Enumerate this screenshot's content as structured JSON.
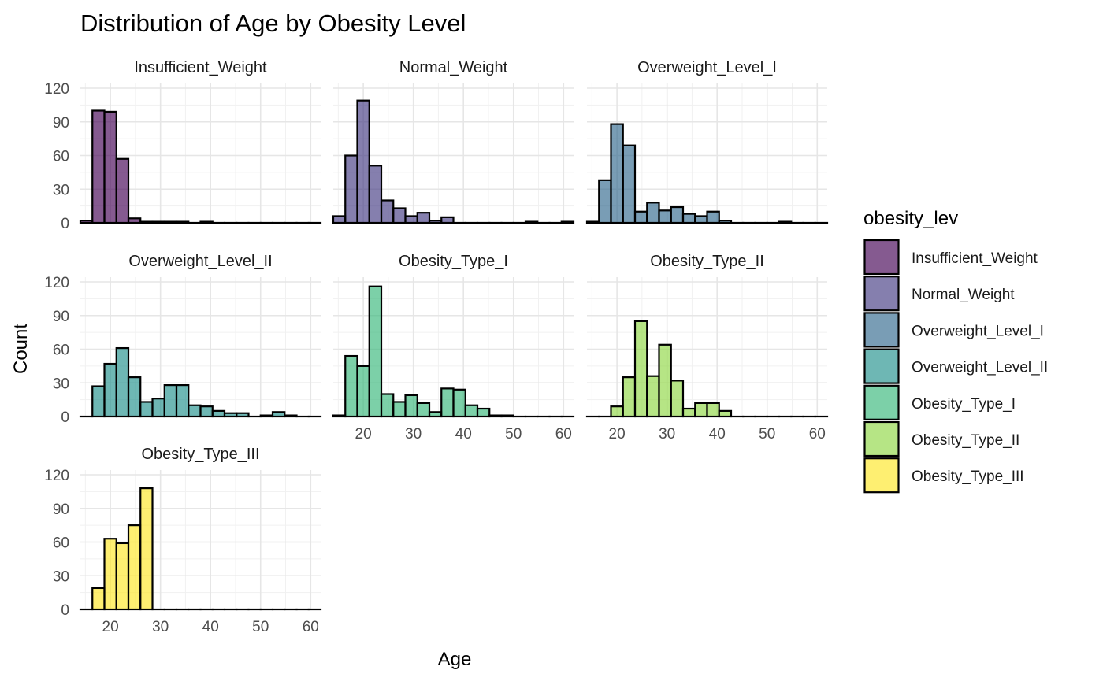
{
  "chart_data": {
    "type": "bar",
    "title": "Distribution of Age by Obesity Level",
    "xlabel": "Age",
    "ylabel": "Count",
    "legend_title": "obesity_lev",
    "legend_position": "right",
    "grid": true,
    "facet_layout": "3 columns",
    "xlim": [
      14,
      62
    ],
    "ylim": [
      0,
      120
    ],
    "x_ticks": [
      20,
      30,
      40,
      50,
      60
    ],
    "y_ticks": [
      0,
      30,
      60,
      90,
      120
    ],
    "bin_width": 2.4,
    "bin_start": 14,
    "series": [
      {
        "name": "Insufficient_Weight",
        "color": "#440154",
        "values": [
          2,
          100,
          99,
          57,
          4,
          1,
          1,
          1,
          1,
          0,
          1,
          0,
          0,
          0,
          0,
          0,
          0,
          0,
          0,
          0
        ]
      },
      {
        "name": "Normal_Weight",
        "color": "#443A83",
        "values": [
          6,
          60,
          109,
          51,
          20,
          13,
          6,
          9,
          2,
          5,
          0,
          0,
          0,
          0,
          0,
          0,
          1,
          0,
          0,
          1
        ]
      },
      {
        "name": "Overweight_Level_I",
        "color": "#31688E",
        "values": [
          1,
          38,
          88,
          69,
          10,
          18,
          11,
          14,
          8,
          6,
          10,
          2,
          0,
          0,
          0,
          0,
          1,
          0,
          0,
          0
        ]
      },
      {
        "name": "Overweight_Level_II",
        "color": "#21908C",
        "values": [
          0,
          27,
          47,
          61,
          35,
          13,
          16,
          28,
          28,
          10,
          9,
          5,
          3,
          3,
          0,
          1,
          4,
          1,
          0,
          0
        ]
      },
      {
        "name": "Obesity_Type_I",
        "color": "#35B779",
        "values": [
          1,
          54,
          45,
          116,
          20,
          13,
          19,
          12,
          4,
          25,
          24,
          10,
          7,
          1,
          1,
          0,
          0,
          0,
          0,
          0
        ]
      },
      {
        "name": "Obesity_Type_II",
        "color": "#8FD744",
        "values": [
          0,
          0,
          9,
          35,
          85,
          36,
          64,
          32,
          7,
          12,
          12,
          5,
          0,
          0,
          0,
          0,
          0,
          0,
          0,
          0
        ]
      },
      {
        "name": "Obesity_Type_III",
        "color": "#FDE725",
        "values": [
          0,
          19,
          63,
          59,
          75,
          108,
          0,
          0,
          0,
          0,
          0,
          0,
          0,
          0,
          0,
          0,
          0,
          0,
          0,
          0
        ]
      }
    ]
  }
}
